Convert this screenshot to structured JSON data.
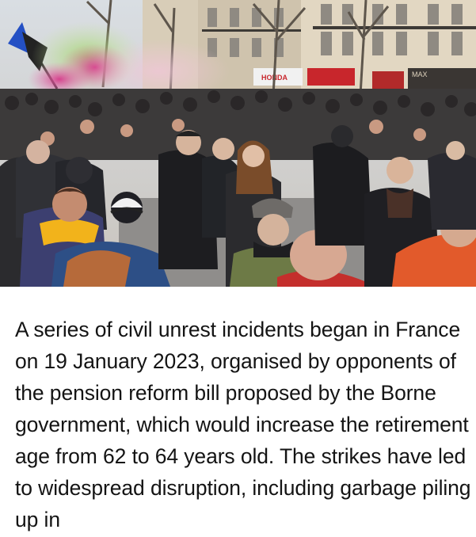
{
  "photo": {
    "alt": "",
    "signs": [
      "HONDA",
      "MAX"
    ]
  },
  "article": {
    "text": "A series of civil unrest incidents began in France on 19 January 2023, organised by opponents of the pension reform bill proposed by the Borne government, which would increase the retirement age from 62 to 64 years old. The strikes have led to widespread disruption, including garbage piling up in"
  },
  "colors": {
    "background": "#ffffff",
    "text": "#141414"
  }
}
